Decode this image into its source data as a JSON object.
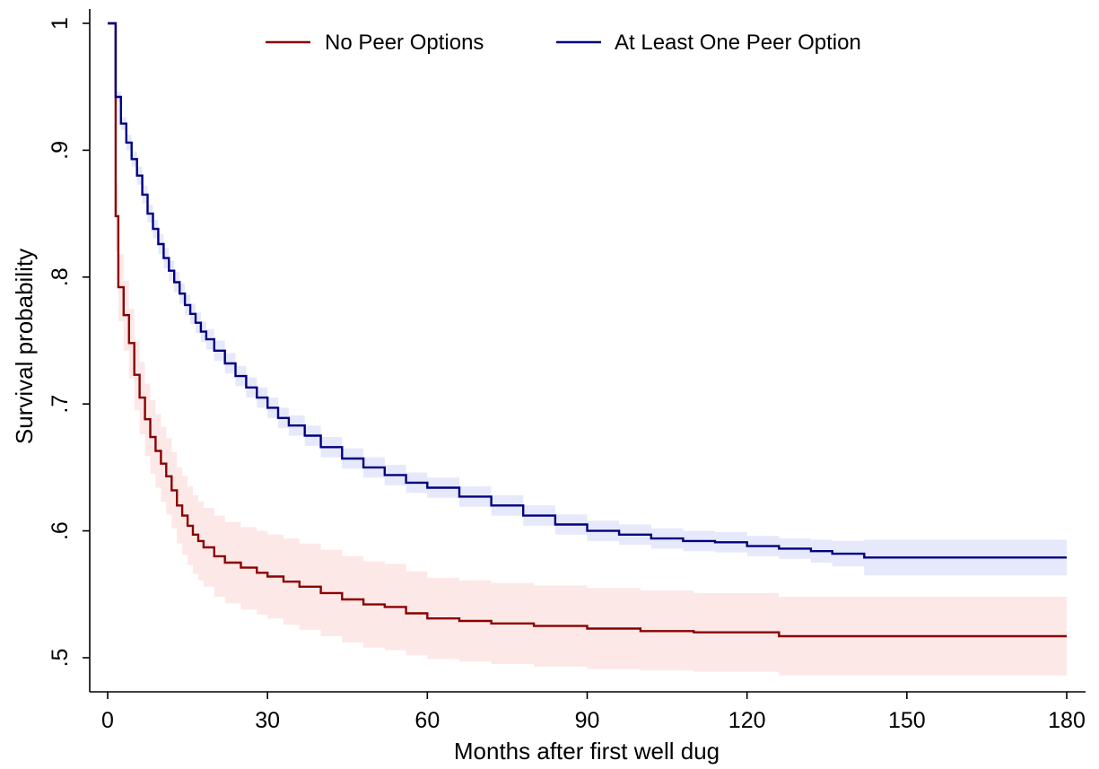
{
  "chart_data": {
    "type": "line",
    "xlabel": "Months after first well dug",
    "ylabel": "Survival probability",
    "xlim": [
      0,
      180
    ],
    "ylim": [
      0.5,
      1.0
    ],
    "x_ticks": [
      0,
      30,
      60,
      90,
      120,
      150,
      180
    ],
    "x_tick_labels": [
      "0",
      "30",
      "60",
      "90",
      "120",
      "150",
      "180"
    ],
    "y_ticks": [
      0.5,
      0.6,
      0.7,
      0.8,
      0.9,
      1.0
    ],
    "y_tick_labels": [
      ".5",
      ".6",
      ".7",
      ".8",
      ".9",
      "1"
    ],
    "grid": false,
    "legend_position": "top",
    "step_curves": true,
    "series": [
      {
        "name": "No Peer Options",
        "color": "#8b0000",
        "band_color": "#fde8e8",
        "x": [
          0,
          1,
          1.5,
          2,
          3,
          4,
          5,
          6,
          7,
          8,
          9,
          10,
          11,
          12,
          13,
          14,
          15,
          16,
          17,
          18,
          20,
          22,
          25,
          28,
          30,
          33,
          36,
          40,
          44,
          48,
          52,
          56,
          60,
          66,
          72,
          80,
          90,
          100,
          110,
          120,
          126,
          140,
          160,
          180
        ],
        "y": [
          1.0,
          1.0,
          0.848,
          0.792,
          0.77,
          0.748,
          0.723,
          0.705,
          0.688,
          0.674,
          0.663,
          0.653,
          0.643,
          0.632,
          0.62,
          0.612,
          0.604,
          0.597,
          0.592,
          0.587,
          0.58,
          0.575,
          0.571,
          0.567,
          0.564,
          0.56,
          0.556,
          0.551,
          0.546,
          0.542,
          0.54,
          0.535,
          0.531,
          0.529,
          0.527,
          0.525,
          0.523,
          0.521,
          0.52,
          0.52,
          0.517,
          0.517,
          0.517,
          0.517
        ],
        "lower": [
          1.0,
          1.0,
          0.82,
          0.765,
          0.742,
          0.72,
          0.695,
          0.676,
          0.659,
          0.645,
          0.634,
          0.623,
          0.613,
          0.602,
          0.59,
          0.581,
          0.573,
          0.566,
          0.561,
          0.556,
          0.548,
          0.543,
          0.538,
          0.534,
          0.531,
          0.526,
          0.522,
          0.517,
          0.512,
          0.508,
          0.506,
          0.502,
          0.499,
          0.497,
          0.495,
          0.493,
          0.491,
          0.49,
          0.489,
          0.489,
          0.486,
          0.486,
          0.486,
          0.486
        ],
        "upper": [
          1.0,
          1.0,
          0.874,
          0.818,
          0.797,
          0.775,
          0.75,
          0.733,
          0.716,
          0.703,
          0.692,
          0.682,
          0.673,
          0.662,
          0.65,
          0.643,
          0.635,
          0.628,
          0.623,
          0.618,
          0.612,
          0.607,
          0.603,
          0.6,
          0.597,
          0.594,
          0.59,
          0.585,
          0.58,
          0.576,
          0.574,
          0.568,
          0.563,
          0.561,
          0.559,
          0.557,
          0.555,
          0.553,
          0.551,
          0.551,
          0.548,
          0.548,
          0.548,
          0.548
        ]
      },
      {
        "name": "At Least One Peer Option",
        "color": "#000080",
        "band_color": "#e6e8fb",
        "x": [
          0,
          1,
          1.5,
          2.5,
          3.5,
          4.5,
          5.5,
          6.5,
          7.5,
          8.5,
          9.5,
          10.5,
          11.5,
          12.5,
          13.5,
          14.5,
          15.5,
          16.5,
          17.5,
          18.5,
          20,
          22,
          24,
          26,
          28,
          30,
          32,
          34,
          37,
          40,
          44,
          48,
          52,
          56,
          60,
          66,
          72,
          78,
          84,
          90,
          96,
          102,
          108,
          114,
          120,
          126,
          132,
          136,
          142,
          160,
          180
        ],
        "y": [
          1.0,
          1.0,
          0.942,
          0.921,
          0.906,
          0.893,
          0.88,
          0.865,
          0.85,
          0.838,
          0.826,
          0.815,
          0.805,
          0.796,
          0.787,
          0.778,
          0.771,
          0.764,
          0.757,
          0.751,
          0.742,
          0.732,
          0.722,
          0.713,
          0.705,
          0.697,
          0.689,
          0.683,
          0.675,
          0.666,
          0.657,
          0.65,
          0.644,
          0.638,
          0.634,
          0.627,
          0.62,
          0.612,
          0.605,
          0.6,
          0.597,
          0.594,
          0.592,
          0.591,
          0.588,
          0.586,
          0.584,
          0.582,
          0.579,
          0.579,
          0.579
        ],
        "lower": [
          1.0,
          1.0,
          0.938,
          0.916,
          0.9,
          0.887,
          0.873,
          0.858,
          0.843,
          0.831,
          0.818,
          0.807,
          0.797,
          0.788,
          0.779,
          0.77,
          0.763,
          0.756,
          0.749,
          0.743,
          0.734,
          0.724,
          0.714,
          0.705,
          0.697,
          0.689,
          0.681,
          0.675,
          0.667,
          0.658,
          0.649,
          0.642,
          0.636,
          0.63,
          0.626,
          0.619,
          0.612,
          0.604,
          0.597,
          0.592,
          0.589,
          0.586,
          0.584,
          0.583,
          0.58,
          0.578,
          0.575,
          0.572,
          0.565,
          0.565,
          0.565
        ],
        "upper": [
          1.0,
          1.0,
          0.946,
          0.926,
          0.912,
          0.899,
          0.887,
          0.872,
          0.857,
          0.845,
          0.834,
          0.823,
          0.813,
          0.804,
          0.795,
          0.786,
          0.779,
          0.772,
          0.765,
          0.759,
          0.75,
          0.74,
          0.73,
          0.721,
          0.713,
          0.705,
          0.697,
          0.691,
          0.683,
          0.674,
          0.665,
          0.658,
          0.652,
          0.646,
          0.642,
          0.635,
          0.628,
          0.62,
          0.613,
          0.608,
          0.605,
          0.602,
          0.6,
          0.599,
          0.596,
          0.594,
          0.593,
          0.592,
          0.593,
          0.593,
          0.593
        ]
      }
    ]
  }
}
